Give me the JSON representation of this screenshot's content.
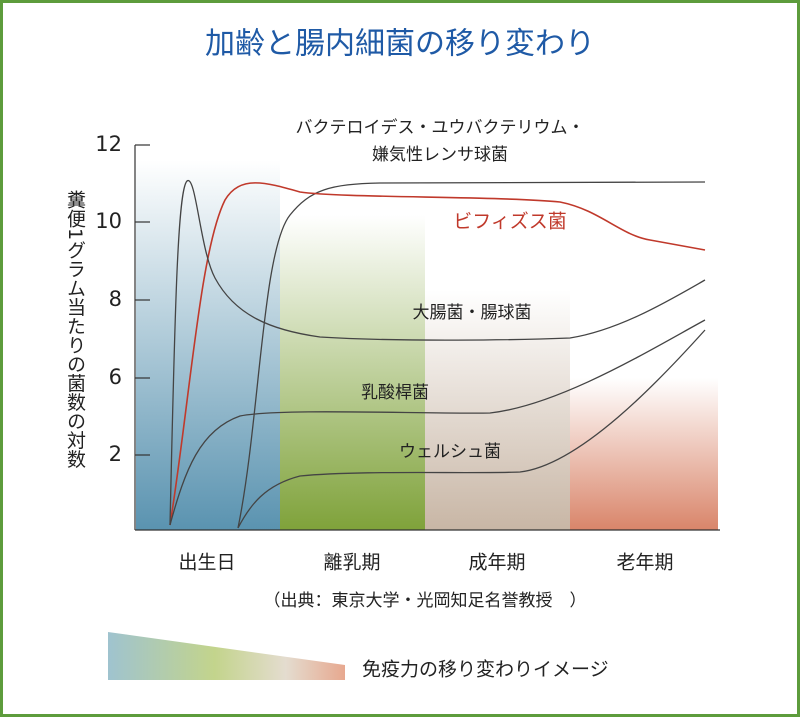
{
  "title": "加齢と腸内細菌の移り変わり",
  "y_axis": {
    "label": "糞便1グラム当たりの菌数の対数",
    "ticks": [
      "12",
      "10",
      "8",
      "6",
      "2"
    ]
  },
  "stages": [
    "出生日",
    "離乳期",
    "成年期",
    "老年期"
  ],
  "curves": {
    "bacteroides_line1": "バクテロイデス・ユウバクテリウム・",
    "bacteroides_line2": "嫌気性レンサ球菌",
    "bifidus": "ビフィズス菌",
    "ecoli": "大腸菌・腸球菌",
    "lactobacillus": "乳酸桿菌",
    "welchii": "ウェルシュ菌"
  },
  "source": "（出典：東京大学・光岡知足名誉教授　）",
  "legend": "免疫力の移り変わりイメージ"
}
